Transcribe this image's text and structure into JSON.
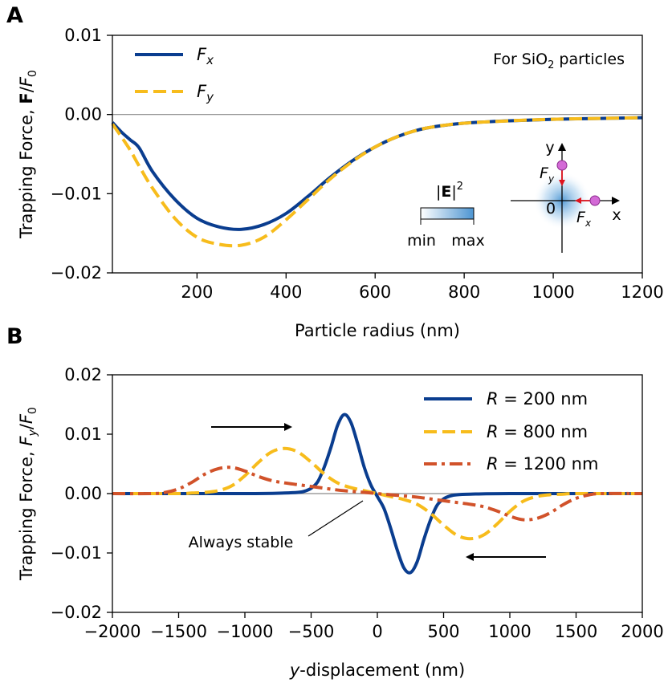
{
  "colors": {
    "blue": "#0a3d8f",
    "yellow": "#f7bc1c",
    "orange": "#d1522a",
    "zero_line": "#8a8a8a",
    "arrow_red": "#e0141e",
    "particle": "#d36ad6"
  },
  "chart_data": [
    {
      "panel_label": "A",
      "type": "line",
      "xlabel": "Particle radius (nm)",
      "ylabel": "Trapping Force, F/F0",
      "ylabel_parts": {
        "prefix": "Trapping Force, ",
        "bold": "F",
        "slash": "/",
        "italic": "F",
        "sub": "0"
      },
      "xlim": [
        10,
        1200
      ],
      "ylim": [
        -0.02,
        0.01
      ],
      "xticks": [
        200,
        400,
        600,
        800,
        1000,
        1200
      ],
      "xtick_labels": [
        "200",
        "400",
        "600",
        "800",
        "1000",
        "1200"
      ],
      "yticks": [
        0.01,
        0.0,
        -0.01,
        -0.02
      ],
      "ytick_labels": [
        "0.01",
        "0.00",
        "−0.01",
        "−0.02"
      ],
      "annotation": "For SiO2 particles",
      "annotation_parts": {
        "pre": "For SiO",
        "sub": "2",
        "post": " particles"
      },
      "legend_position": "upper-left",
      "series": [
        {
          "name": "Fx",
          "label_italic": "F",
          "label_sub": "x",
          "color": "#0a3d8f",
          "style": "solid",
          "x": [
            10,
            30,
            50,
            70,
            100,
            150,
            200,
            250,
            300,
            350,
            400,
            450,
            500,
            550,
            600,
            650,
            700,
            750,
            800,
            900,
            1000,
            1100,
            1200
          ],
          "values": [
            -0.001,
            -0.0022,
            -0.0032,
            -0.0042,
            -0.0072,
            -0.0107,
            -0.0131,
            -0.0142,
            -0.0145,
            -0.0139,
            -0.0125,
            -0.0103,
            -0.0079,
            -0.0058,
            -0.0041,
            -0.0028,
            -0.0019,
            -0.0014,
            -0.0011,
            -0.0008,
            -0.0006,
            -0.0005,
            -0.0004
          ]
        },
        {
          "name": "Fy",
          "label_italic": "F",
          "label_sub": "y",
          "color": "#f7bc1c",
          "style": "dashed",
          "x": [
            10,
            30,
            50,
            70,
            100,
            150,
            200,
            250,
            300,
            350,
            400,
            450,
            500,
            550,
            600,
            650,
            700,
            750,
            800,
            900,
            1000,
            1100,
            1200
          ],
          "values": [
            -0.0012,
            -0.0028,
            -0.0045,
            -0.0065,
            -0.0093,
            -0.0131,
            -0.0155,
            -0.0164,
            -0.0165,
            -0.0155,
            -0.0133,
            -0.0107,
            -0.0081,
            -0.0059,
            -0.0041,
            -0.0028,
            -0.0019,
            -0.0014,
            -0.0011,
            -0.0008,
            -0.0006,
            -0.0005,
            -0.0004
          ]
        }
      ],
      "colorbar": {
        "title": "|E|2",
        "title_parts": {
          "pre": "|",
          "bold": "E",
          "post": "|",
          "sup": "2"
        },
        "min_label": "min",
        "max_label": "max"
      },
      "inset": {
        "y_axis": "y",
        "x_axis": "x",
        "origin": "0",
        "fy_italic": "F",
        "fy_sub": "y",
        "fx_italic": "F",
        "fx_sub": "x"
      }
    },
    {
      "panel_label": "B",
      "type": "line",
      "xlabel": "y-displacement (nm)",
      "xlabel_parts": {
        "italic": "y",
        "rest": "-displacement (nm)"
      },
      "ylabel": "Trapping Force, Fy/F0",
      "ylabel_parts": {
        "prefix": "Trapping Force, ",
        "italic": "F",
        "sub_y": "y",
        "slash": "/",
        "italic2": "F",
        "sub": "0"
      },
      "xlim": [
        -2000,
        2000
      ],
      "ylim": [
        -0.02,
        0.02
      ],
      "xticks": [
        -2000,
        -1500,
        -1000,
        -500,
        0,
        500,
        1000,
        1500,
        2000
      ],
      "xtick_labels": [
        "−2000",
        "−1500",
        "−1000",
        "−500",
        "0",
        "500",
        "1000",
        "1500",
        "2000"
      ],
      "yticks": [
        0.02,
        0.01,
        0.0,
        -0.01,
        -0.02
      ],
      "ytick_labels": [
        "0.02",
        "0.01",
        "0.00",
        "−0.01",
        "−0.02"
      ],
      "annotation": "Always stable",
      "legend_position": "upper-right",
      "series": [
        {
          "name": "R = 200 nm",
          "label_italic": "R",
          "label_rest": " = 200 nm",
          "color": "#0a3d8f",
          "style": "solid",
          "x": [
            -2000,
            -1000,
            -700,
            -600,
            -550,
            -500,
            -450,
            -400,
            -350,
            -300,
            -250,
            -200,
            -150,
            -100,
            -50,
            0,
            50,
            100,
            150,
            200,
            250,
            300,
            350,
            400,
            450,
            500,
            550,
            600,
            700,
            1000,
            2000
          ],
          "values": [
            0,
            0,
            0.0001,
            0.0002,
            0.0004,
            0.0009,
            0.002,
            0.0045,
            0.0078,
            0.0115,
            0.0133,
            0.012,
            0.0085,
            0.0045,
            0.0015,
            -0.0005,
            -0.0025,
            -0.0058,
            -0.0095,
            -0.0125,
            -0.0133,
            -0.0115,
            -0.0078,
            -0.0045,
            -0.002,
            -0.0009,
            -0.0004,
            -0.0002,
            -0.0001,
            0,
            0
          ]
        },
        {
          "name": "R = 800 nm",
          "label_italic": "R",
          "label_rest": " = 800 nm",
          "color": "#f7bc1c",
          "style": "dashed",
          "x": [
            -2000,
            -1500,
            -1400,
            -1300,
            -1200,
            -1100,
            -1000,
            -900,
            -800,
            -700,
            -600,
            -500,
            -400,
            -300,
            -200,
            -100,
            0,
            100,
            200,
            300,
            400,
            500,
            600,
            700,
            800,
            900,
            1000,
            1100,
            1200,
            1300,
            1400,
            1500,
            2000
          ],
          "values": [
            0,
            0,
            0.0001,
            0.0002,
            0.0005,
            0.0013,
            0.003,
            0.0052,
            0.007,
            0.0076,
            0.007,
            0.0053,
            0.0033,
            0.0018,
            0.001,
            0.0005,
            0.0,
            -0.0005,
            -0.001,
            -0.0018,
            -0.0033,
            -0.0053,
            -0.007,
            -0.0076,
            -0.007,
            -0.0052,
            -0.003,
            -0.0013,
            -0.0005,
            -0.0002,
            -0.0001,
            0,
            0
          ]
        },
        {
          "name": "R = 1200 nm",
          "label_italic": "R",
          "label_rest": " = 1200 nm",
          "color": "#d1522a",
          "style": "dashdot",
          "x": [
            -2000,
            -1700,
            -1600,
            -1500,
            -1400,
            -1300,
            -1200,
            -1100,
            -1000,
            -900,
            -800,
            -700,
            -600,
            -500,
            -400,
            -300,
            -200,
            -100,
            0,
            100,
            200,
            300,
            400,
            500,
            600,
            700,
            800,
            900,
            1000,
            1100,
            1200,
            1300,
            1400,
            1500,
            1600,
            1700,
            2000
          ],
          "values": [
            0,
            0,
            0.0002,
            0.0008,
            0.0019,
            0.0033,
            0.0042,
            0.0044,
            0.0038,
            0.0029,
            0.0022,
            0.0018,
            0.0015,
            0.0012,
            0.0009,
            0.0006,
            0.0004,
            0.0002,
            0.0,
            -0.0002,
            -0.0004,
            -0.0006,
            -0.0009,
            -0.0012,
            -0.0015,
            -0.0018,
            -0.0022,
            -0.0029,
            -0.0038,
            -0.0044,
            -0.0042,
            -0.0033,
            -0.0019,
            -0.0008,
            -0.0002,
            0,
            0
          ]
        }
      ]
    }
  ]
}
